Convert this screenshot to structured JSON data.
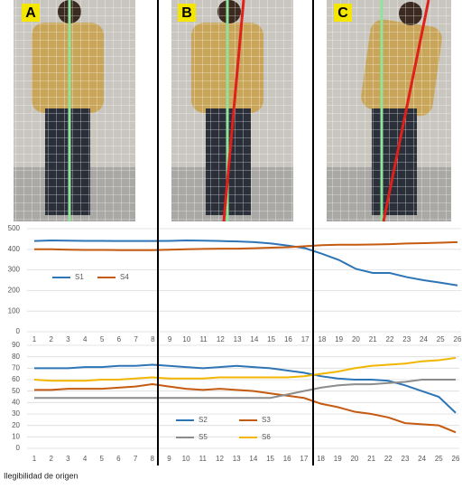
{
  "panels": [
    "A",
    "B",
    "C"
  ],
  "caption": "Ilegibilidad de origen",
  "chart_data": [
    {
      "type": "line",
      "categories": [
        "1",
        "2",
        "3",
        "4",
        "5",
        "6",
        "7",
        "8",
        "9",
        "10",
        "11",
        "12",
        "13",
        "14",
        "15",
        "16",
        "17",
        "18",
        "19",
        "20",
        "21",
        "22",
        "23",
        "24",
        "25",
        "26"
      ],
      "ylim": [
        0,
        500
      ],
      "yticks": [
        0,
        100,
        200,
        300,
        400,
        500
      ],
      "grid": true,
      "series": [
        {
          "name": "S1",
          "color": "#2e75b6",
          "values": [
            440,
            443,
            442,
            441,
            441,
            440,
            440,
            440,
            441,
            443,
            442,
            440,
            438,
            435,
            428,
            418,
            405,
            378,
            348,
            305,
            285,
            285,
            265,
            250,
            238,
            225
          ]
        },
        {
          "name": "S4",
          "color": "#c55a11",
          "values": [
            400,
            400,
            398,
            397,
            397,
            396,
            396,
            396,
            398,
            400,
            402,
            403,
            403,
            405,
            408,
            410,
            415,
            420,
            422,
            422,
            423,
            425,
            428,
            430,
            432,
            435
          ]
        }
      ]
    },
    {
      "type": "line",
      "categories": [
        "1",
        "2",
        "3",
        "4",
        "5",
        "6",
        "7",
        "8",
        "9",
        "10",
        "11",
        "12",
        "13",
        "14",
        "15",
        "16",
        "17",
        "18",
        "19",
        "20",
        "21",
        "22",
        "23",
        "24",
        "25",
        "26"
      ],
      "ylim": [
        0,
        90
      ],
      "yticks": [
        0,
        10,
        20,
        30,
        40,
        50,
        60,
        70,
        80,
        90
      ],
      "grid": true,
      "series": [
        {
          "name": "S2",
          "color": "#2e75b6",
          "values": [
            70,
            70,
            70,
            71,
            71,
            72,
            72,
            73,
            72,
            71,
            70,
            71,
            72,
            71,
            70,
            68,
            66,
            63,
            61,
            60,
            60,
            59,
            55,
            50,
            45,
            31
          ]
        },
        {
          "name": "S3",
          "color": "#c55a11",
          "values": [
            51,
            51,
            52,
            52,
            52,
            53,
            54,
            56,
            54,
            52,
            51,
            52,
            51,
            50,
            48,
            46,
            44,
            39,
            36,
            32,
            30,
            27,
            22,
            21,
            20,
            14
          ]
        },
        {
          "name": "S5",
          "color": "#8c8c8c",
          "values": [
            44,
            44,
            44,
            44,
            44,
            44,
            44,
            44,
            44,
            44,
            44,
            44,
            44,
            44,
            44,
            47,
            50,
            53,
            55,
            56,
            56,
            57,
            58,
            60,
            60,
            60
          ]
        },
        {
          "name": "S6",
          "color": "#f2b600",
          "values": [
            60,
            59,
            59,
            59,
            60,
            60,
            61,
            62,
            61,
            61,
            61,
            62,
            62,
            62,
            62,
            62,
            63,
            65,
            67,
            70,
            72,
            73,
            74,
            76,
            77,
            79
          ]
        }
      ]
    }
  ]
}
